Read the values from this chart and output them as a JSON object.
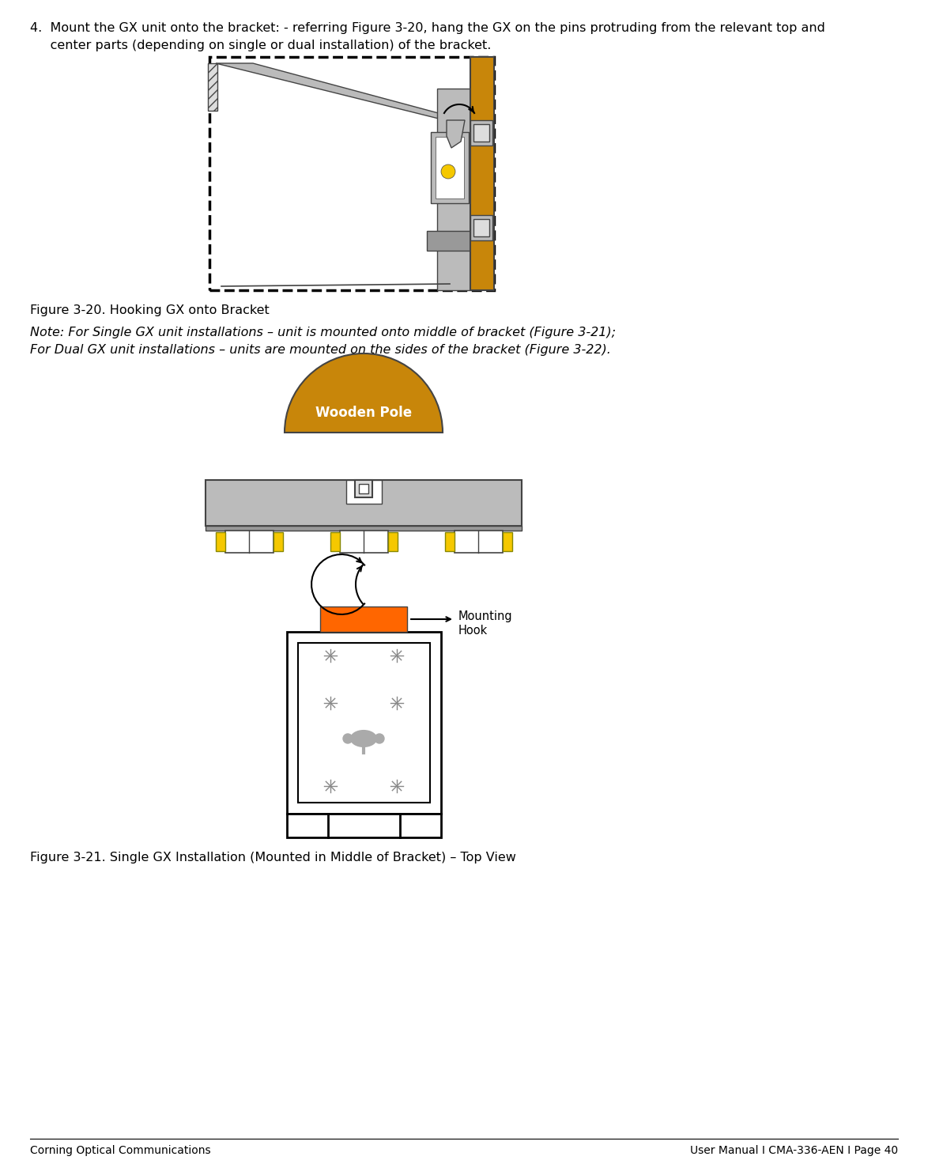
{
  "bg_color": "#ffffff",
  "text_color": "#000000",
  "step_line1": "4.  Mount the GX unit onto the bracket: - referring Figure 3-20, hang the GX on the pins protruding from the relevant top and",
  "step_line2": "     center parts (depending on single or dual installation) of the bracket.",
  "fig320_caption": "Figure 3-20. Hooking GX onto Bracket",
  "note_line1": "Note: For Single GX unit installations – unit is mounted onto middle of bracket (Figure 3-21);",
  "note_line2": "For Dual GX unit installations – units are mounted on the sides of the bracket (Figure 3-22).",
  "fig321_caption": "Figure 3-21. Single GX Installation (Mounted in Middle of Bracket) – Top View",
  "footer_left": "Corning Optical Communications",
  "footer_right": "User Manual I CMA-336-AEN I Page 40",
  "wooden_pole_label": "Wooden Pole",
  "mounting_hook_label_line1": "Mounting",
  "mounting_hook_label_line2": "Hook",
  "pole_color": "#C8860A",
  "bracket_gray": "#BBBBBB",
  "bracket_dark": "#999999",
  "orange_color": "#FF6600",
  "yellow_color": "#F5C800",
  "white_color": "#FFFFFF",
  "dark_outline": "#444444",
  "light_gray": "#DDDDDD",
  "medium_gray": "#AAAAAA"
}
